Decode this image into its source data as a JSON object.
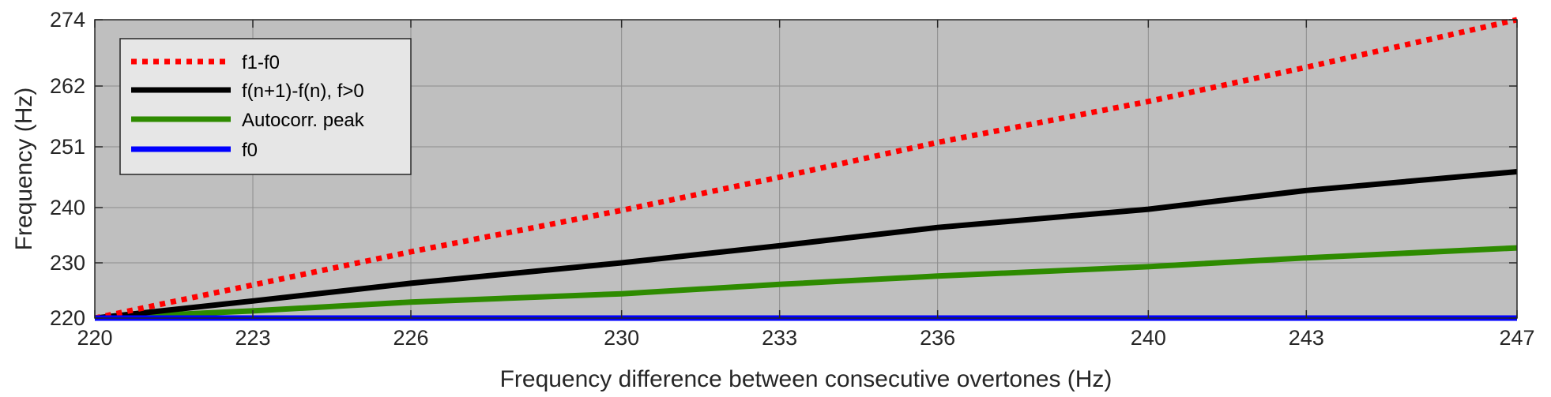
{
  "chart_data": {
    "type": "line",
    "xlabel": "Frequency difference between consecutive overtones (Hz)",
    "ylabel": "Frequency (Hz)",
    "xlim": [
      220,
      247
    ],
    "ylim": [
      220,
      274
    ],
    "x_ticks": [
      220,
      223,
      226,
      230,
      233,
      236,
      240,
      243,
      247
    ],
    "x_tick_labels": [
      "220",
      "223",
      "226",
      "230",
      "233",
      "236",
      "240",
      "243",
      "247"
    ],
    "y_ticks": [
      220,
      230,
      240,
      251,
      262,
      274
    ],
    "y_tick_labels": [
      "220",
      "230",
      "240",
      "251",
      "262",
      "274"
    ],
    "grid": true,
    "background": "#bfbfbf",
    "legend_position": "top-left",
    "x": [
      220,
      223,
      226,
      230,
      233,
      236,
      240,
      243,
      247
    ],
    "series": [
      {
        "name": "f1-f0",
        "color": "#ff0000",
        "style": "dotted",
        "values": [
          220,
          226,
          232,
          239.5,
          245.5,
          251.8,
          259.2,
          265.4,
          274
        ]
      },
      {
        "name": "f(n+1)-f(n), f>0",
        "color": "#000000",
        "style": "solid",
        "values": [
          220,
          223.1,
          226.3,
          230,
          233.1,
          236.4,
          239.7,
          243.1,
          246.5
        ]
      },
      {
        "name": "Autocorr. peak",
        "color": "#2e8b00",
        "style": "solid",
        "values": [
          220,
          221.3,
          222.9,
          224.4,
          226.1,
          227.6,
          229.3,
          230.9,
          232.7
        ]
      },
      {
        "name": "f0",
        "color": "#0000ff",
        "style": "solid",
        "values": [
          220,
          220,
          220,
          220,
          220,
          220,
          220,
          220,
          220
        ]
      }
    ]
  }
}
